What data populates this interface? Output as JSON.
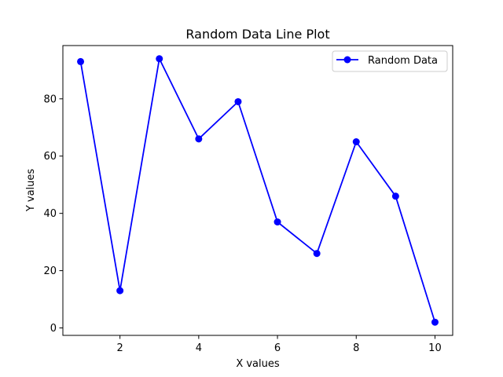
{
  "chart_data": {
    "type": "line",
    "title": "Random Data Line Plot",
    "xlabel": "X values",
    "ylabel": "Y values",
    "x": [
      1,
      2,
      3,
      4,
      5,
      6,
      7,
      8,
      9,
      10
    ],
    "series": [
      {
        "name": "Random Data",
        "values": [
          93,
          13,
          94,
          66,
          79,
          37,
          26,
          65,
          46,
          2
        ],
        "color": "#0000ff",
        "marker": "circle"
      }
    ],
    "xlim": [
      0.55,
      10.45
    ],
    "ylim": [
      -2.6,
      98.6
    ],
    "xticks": [
      2,
      4,
      6,
      8,
      10
    ],
    "xtick_labels": [
      "2",
      "4",
      "6",
      "8",
      "10"
    ],
    "yticks": [
      0,
      20,
      40,
      60,
      80
    ],
    "ytick_labels": [
      "0",
      "20",
      "40",
      "60",
      "80"
    ],
    "grid": false,
    "legend_position": "top-right"
  }
}
